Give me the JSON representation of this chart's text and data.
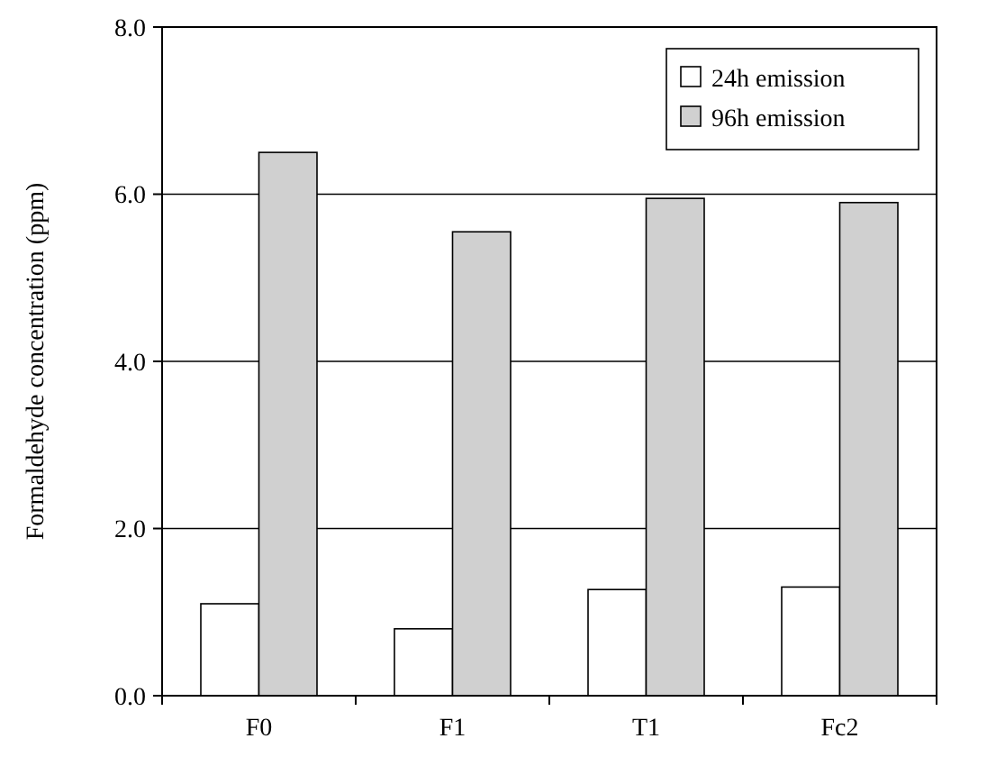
{
  "chart_data": {
    "type": "bar",
    "ylabel": "Formaldehyde concentration (ppm)",
    "categories": [
      "F0",
      "F1",
      "T1",
      "Fc2"
    ],
    "series": [
      {
        "name": "24h emission",
        "color": "#ffffff",
        "values": [
          1.1,
          0.8,
          1.27,
          1.3
        ]
      },
      {
        "name": "96h emission",
        "color": "#d0d0d0",
        "values": [
          6.5,
          5.55,
          5.95,
          5.9
        ]
      }
    ],
    "ylim": [
      0,
      8
    ],
    "yticks": [
      {
        "value": 0,
        "label": "0.0"
      },
      {
        "value": 2,
        "label": "2.0"
      },
      {
        "value": 4,
        "label": "4.0"
      },
      {
        "value": 6,
        "label": "6.0"
      },
      {
        "value": 8,
        "label": "8.0"
      }
    ],
    "grid": "y",
    "legend": "top right"
  }
}
